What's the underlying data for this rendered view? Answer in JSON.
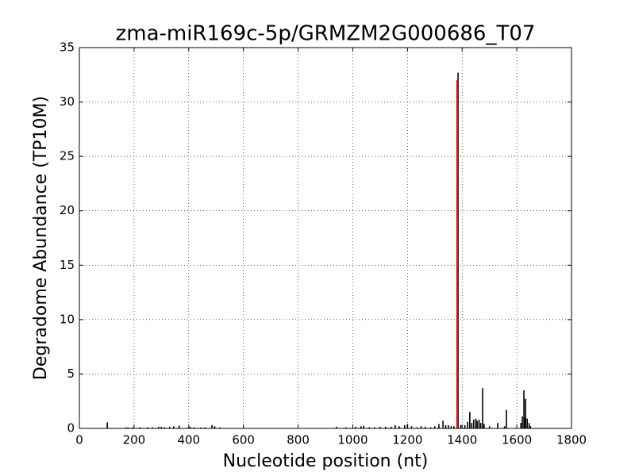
{
  "chart_data": {
    "type": "bar",
    "title": "zma-miR169c-5p/GRMZM2G000686_T07",
    "x_label": "Nucleotide position (nt)",
    "y_label": "Degradome Abundance (TP10M)",
    "xlim": [
      0,
      1800
    ],
    "ylim": [
      0,
      35
    ],
    "xticks": [
      0,
      200,
      400,
      600,
      800,
      1000,
      1200,
      1400,
      1600,
      1800
    ],
    "yticks": [
      0,
      5,
      10,
      15,
      20,
      25,
      30,
      35
    ],
    "grid": true,
    "series": [
      {
        "color": "#000000",
        "x": [
          102,
          170,
          178,
          195,
          222,
          250,
          268,
          290,
          300,
          312,
          330,
          345,
          365,
          405,
          420,
          445,
          460,
          485,
          495,
          515,
          940,
          975,
          1010,
          1030,
          1040,
          1060,
          1080,
          1100,
          1120,
          1140,
          1155,
          1170,
          1190,
          1200,
          1215,
          1235,
          1250,
          1265,
          1285,
          1300,
          1315,
          1330,
          1340,
          1350,
          1360,
          1370,
          1385,
          1395,
          1410,
          1420,
          1428,
          1435,
          1442,
          1450,
          1455,
          1462,
          1468,
          1475,
          1480,
          1500,
          1530,
          1555,
          1562,
          1615,
          1620,
          1626,
          1630,
          1632,
          1638,
          1645,
          1650
        ],
        "values": [
          0.55,
          0.1,
          0.1,
          0.1,
          0.1,
          0.1,
          0.1,
          0.15,
          0.15,
          0.1,
          0.15,
          0.2,
          0.25,
          0.15,
          0.1,
          0.1,
          0.1,
          0.3,
          0.2,
          0.1,
          0.15,
          0.1,
          0.15,
          0.2,
          0.25,
          0.1,
          0.1,
          0.15,
          0.15,
          0.15,
          0.3,
          0.2,
          0.3,
          0.4,
          0.2,
          0.1,
          0.2,
          0.15,
          0.1,
          0.2,
          0.4,
          0.7,
          0.3,
          0.3,
          0.2,
          0.2,
          32.7,
          0.3,
          0.3,
          0.6,
          1.5,
          0.5,
          0.8,
          0.9,
          0.7,
          0.8,
          0.5,
          3.7,
          0.4,
          0.2,
          0.5,
          0.2,
          1.7,
          0.5,
          1.1,
          3.5,
          1.0,
          2.7,
          0.9,
          0.5,
          0.2
        ]
      },
      {
        "color": "#ff0000",
        "x": [
          1382
        ],
        "values": [
          32
        ]
      }
    ]
  }
}
